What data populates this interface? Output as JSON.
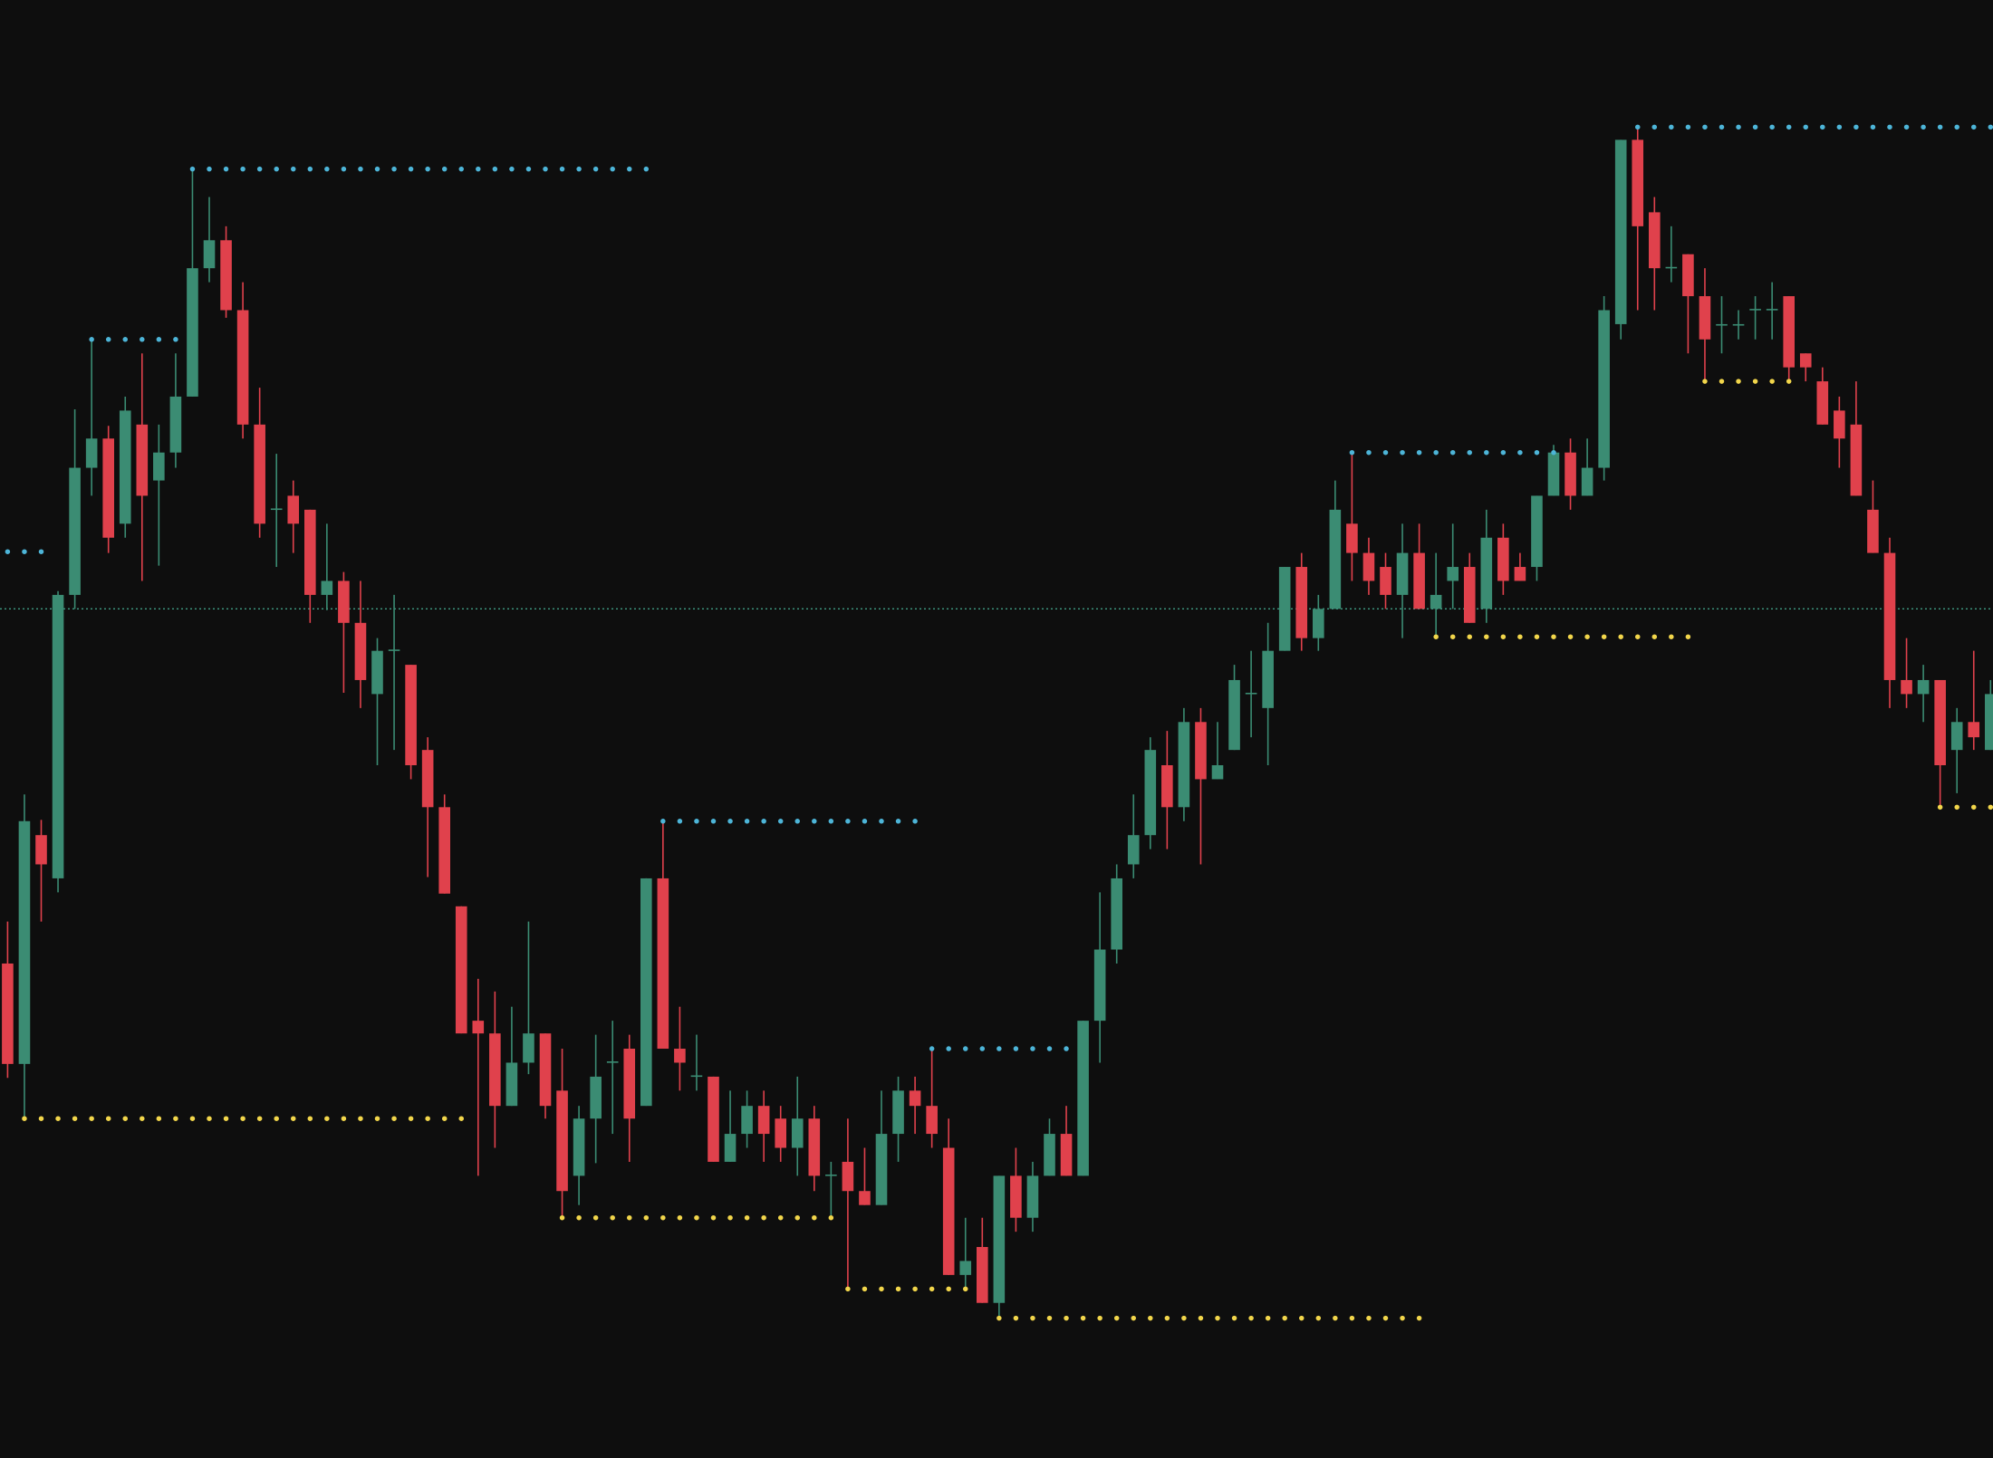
{
  "chart_data": {
    "type": "candlestick",
    "categories": [
      null,
      null,
      null,
      null,
      null,
      null,
      null,
      null,
      null,
      null,
      null,
      null,
      null,
      null,
      null,
      null,
      null,
      null,
      null,
      null,
      null,
      null,
      null,
      null,
      null,
      null,
      null,
      null,
      null,
      null,
      null,
      null,
      null,
      null,
      null,
      null,
      null,
      null,
      null,
      null,
      null,
      null,
      null,
      null,
      null,
      null,
      null,
      null,
      null,
      null,
      null,
      null,
      null,
      null,
      null,
      null,
      null,
      null,
      null,
      null,
      null,
      null,
      null,
      null,
      null,
      null,
      null,
      null,
      null,
      null,
      null,
      null,
      null,
      null,
      null,
      null,
      null,
      null,
      null,
      null,
      null,
      null,
      null,
      null,
      null,
      null,
      null,
      null,
      null,
      null,
      null,
      null,
      null,
      null,
      null,
      null,
      null,
      null,
      null,
      null,
      null,
      null,
      null,
      null,
      null,
      null,
      null,
      null,
      null,
      null,
      null,
      null,
      null,
      null,
      null,
      null,
      null,
      null,
      null
    ],
    "open": [
      389,
      310,
      490,
      456,
      679,
      779,
      802,
      735,
      813,
      769,
      791,
      835,
      936,
      958,
      903,
      813,
      746,
      757,
      746,
      679,
      690,
      657,
      601,
      635,
      624,
      557,
      512,
      434,
      344,
      334,
      277,
      311,
      334,
      289,
      222,
      267,
      311,
      322,
      277,
      456,
      322,
      300,
      300,
      233,
      255,
      277,
      267,
      244,
      267,
      222,
      233,
      210,
      199,
      255,
      289,
      277,
      244,
      144,
      166,
      122,
      222,
      189,
      222,
      255,
      222,
      344,
      400,
      467,
      490,
      545,
      512,
      579,
      534,
      557,
      601,
      590,
      635,
      701,
      645,
      668,
      735,
      712,
      701,
      679,
      712,
      668,
      690,
      701,
      668,
      724,
      701,
      701,
      757,
      791,
      757,
      779,
      892,
      1037,
      980,
      936,
      947,
      914,
      891,
      891,
      903,
      903,
      914,
      869,
      847,
      824,
      813,
      746,
      712,
      612,
      601,
      612,
      557,
      579,
      557
    ],
    "high": [
      422,
      522,
      502,
      682,
      825,
      880,
      812,
      835,
      869,
      813,
      869,
      1014,
      992,
      969,
      925,
      842,
      790,
      769,
      746,
      735,
      697,
      690,
      645,
      679,
      624,
      567,
      522,
      434,
      377,
      367,
      355,
      422,
      334,
      322,
      277,
      333,
      344,
      333,
      456,
      501,
      355,
      333,
      300,
      289,
      289,
      289,
      277,
      300,
      277,
      233,
      267,
      244,
      289,
      300,
      300,
      322,
      267,
      189,
      189,
      222,
      244,
      233,
      267,
      277,
      344,
      445,
      467,
      522,
      567,
      572,
      590,
      590,
      579,
      624,
      635,
      657,
      701,
      712,
      679,
      769,
      791,
      724,
      712,
      735,
      735,
      712,
      735,
      712,
      746,
      735,
      712,
      757,
      797,
      802,
      802,
      914,
      1037,
      1047,
      992,
      969,
      947,
      936,
      914,
      903,
      914,
      925,
      914,
      869,
      858,
      835,
      847,
      769,
      724,
      645,
      624,
      612,
      590,
      635,
      612
    ],
    "low": [
      299,
      267,
      422,
      445,
      668,
      757,
      712,
      724,
      690,
      702,
      779,
      835,
      925,
      897,
      802,
      724,
      701,
      712,
      657,
      667,
      602,
      590,
      545,
      557,
      534,
      457,
      444,
      334,
      222,
      244,
      277,
      302,
      267,
      189,
      199,
      232,
      255,
      233,
      277,
      322,
      289,
      289,
      233,
      233,
      244,
      233,
      233,
      222,
      210,
      189,
      133,
      199,
      199,
      233,
      255,
      244,
      144,
      133,
      122,
      110,
      178,
      178,
      222,
      222,
      222,
      311,
      389,
      456,
      479,
      479,
      501,
      467,
      534,
      557,
      567,
      545,
      635,
      635,
      635,
      668,
      690,
      679,
      668,
      645,
      668,
      645,
      668,
      657,
      657,
      679,
      690,
      690,
      757,
      746,
      757,
      769,
      880,
      903,
      903,
      925,
      869,
      847,
      869,
      880,
      880,
      880,
      847,
      847,
      813,
      779,
      757,
      712,
      590,
      590,
      579,
      512,
      523,
      557,
      557
    ],
    "close": [
      310,
      501,
      467,
      679,
      779,
      802,
      724,
      824,
      757,
      791,
      835,
      936,
      958,
      903,
      813,
      735,
      747,
      735,
      679,
      690,
      657,
      612,
      635,
      636,
      545,
      512,
      444,
      334,
      334,
      277,
      311,
      334,
      277,
      210,
      267,
      300,
      312,
      267,
      456,
      322,
      311,
      301,
      233,
      255,
      277,
      255,
      244,
      267,
      222,
      223,
      210,
      199,
      255,
      289,
      277,
      255,
      144,
      155,
      122,
      222,
      189,
      222,
      255,
      222,
      344,
      400,
      456,
      490,
      557,
      512,
      579,
      534,
      545,
      612,
      602,
      635,
      701,
      645,
      668,
      746,
      712,
      690,
      679,
      712,
      668,
      679,
      701,
      657,
      724,
      690,
      690,
      757,
      791,
      757,
      779,
      903,
      1037,
      969,
      936,
      937,
      914,
      880,
      892,
      892,
      904,
      904,
      858,
      858,
      813,
      802,
      757,
      712,
      612,
      601,
      612,
      545,
      579,
      567,
      601
    ],
    "up_color": "#3b8c73",
    "down_color": "#e0414c",
    "ylim": [
      0,
      1147
    ],
    "swing_highs": {
      "color": "#4db5d8",
      "levels": [
        {
          "value": 713,
          "start": 0,
          "end": 2
        },
        {
          "value": 880,
          "start": 5,
          "end": 10
        },
        {
          "value": 1014,
          "start": 11,
          "end": 38
        },
        {
          "value": 501,
          "start": 39,
          "end": 54
        },
        {
          "value": 322,
          "start": 55,
          "end": 63
        },
        {
          "value": 791,
          "start": 80,
          "end": 92
        },
        {
          "value": 1047,
          "start": 97,
          "end": 118
        }
      ]
    },
    "swing_lows": {
      "color": "#f2d64b",
      "levels": [
        {
          "value": 267,
          "start": 1,
          "end": 27
        },
        {
          "value": 189,
          "start": 33,
          "end": 49
        },
        {
          "value": 133,
          "start": 50,
          "end": 57
        },
        {
          "value": 110,
          "start": 59,
          "end": 84
        },
        {
          "value": 646,
          "start": 85,
          "end": 100
        },
        {
          "value": 847,
          "start": 101,
          "end": 106
        },
        {
          "value": 512,
          "start": 115,
          "end": 118
        }
      ]
    },
    "price_line": {
      "value": 668,
      "color": "#3f9c84"
    }
  }
}
